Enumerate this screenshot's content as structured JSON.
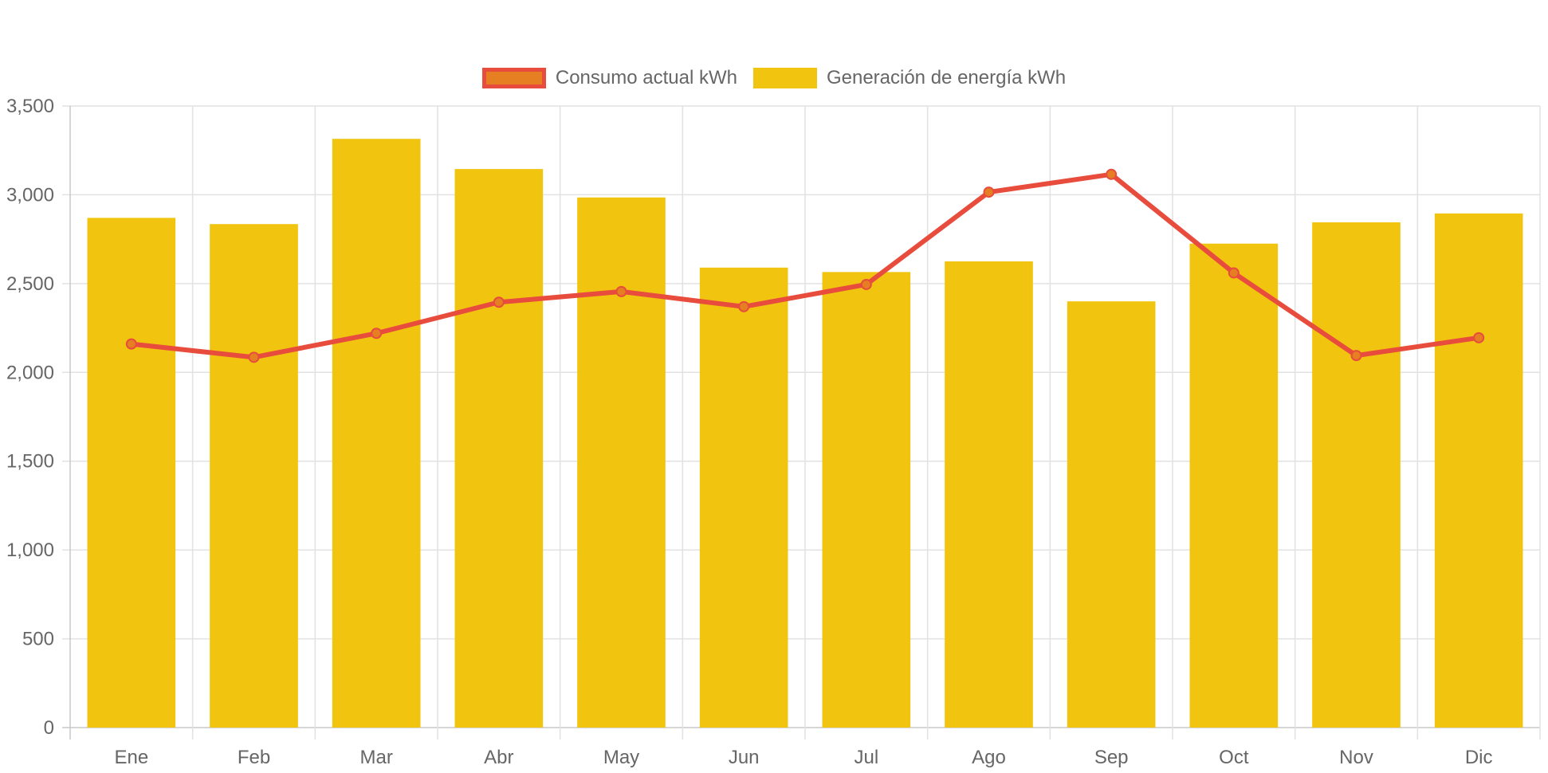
{
  "chart_data": {
    "type": "bar",
    "categories": [
      "Ene",
      "Feb",
      "Mar",
      "Abr",
      "May",
      "Jun",
      "Jul",
      "Ago",
      "Sep",
      "Oct",
      "Nov",
      "Dic"
    ],
    "series": [
      {
        "name": "Consumo actual kWh",
        "type": "line",
        "color": "#e84c3d",
        "point_color": "#e67e22",
        "values": [
          2160,
          2085,
          2220,
          2395,
          2455,
          2370,
          2495,
          3015,
          3115,
          2560,
          2095,
          2195
        ]
      },
      {
        "name": "Generación de energía kWh",
        "type": "bar",
        "color": "#f1c40f",
        "values": [
          2870,
          2835,
          3315,
          3145,
          2985,
          2590,
          2565,
          2625,
          2400,
          2725,
          2845,
          2895
        ]
      }
    ],
    "title": "",
    "xlabel": "",
    "ylabel": "",
    "ylim": [
      0,
      3500
    ],
    "yticks": [
      "0",
      "500",
      "1,000",
      "1,500",
      "2,000",
      "2,500",
      "3,000",
      "3,500"
    ],
    "grid": true,
    "legend_position": "top-center"
  }
}
